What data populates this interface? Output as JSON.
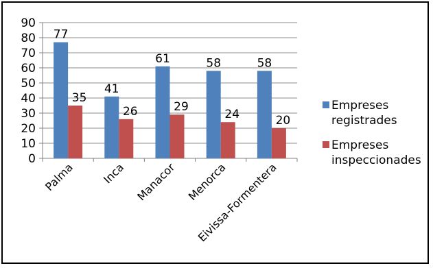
{
  "chart_data": {
    "type": "bar",
    "categories": [
      "Palma",
      "Inca",
      "Manacor",
      "Menorca",
      "Eivissa-Formentera"
    ],
    "series": [
      {
        "name": "Empreses registrades",
        "values": [
          77,
          41,
          61,
          58,
          58
        ],
        "color": "#4F81BD"
      },
      {
        "name": "Empreses inspeccionades",
        "values": [
          35,
          26,
          29,
          24,
          20
        ],
        "color": "#C0504D"
      }
    ],
    "title": "",
    "xlabel": "",
    "ylabel": "",
    "ylim": [
      0,
      90
    ],
    "yticks": [
      0,
      10,
      20,
      30,
      40,
      50,
      60,
      70,
      80,
      90
    ],
    "grid": true,
    "legend": "right",
    "data_labels": true
  }
}
